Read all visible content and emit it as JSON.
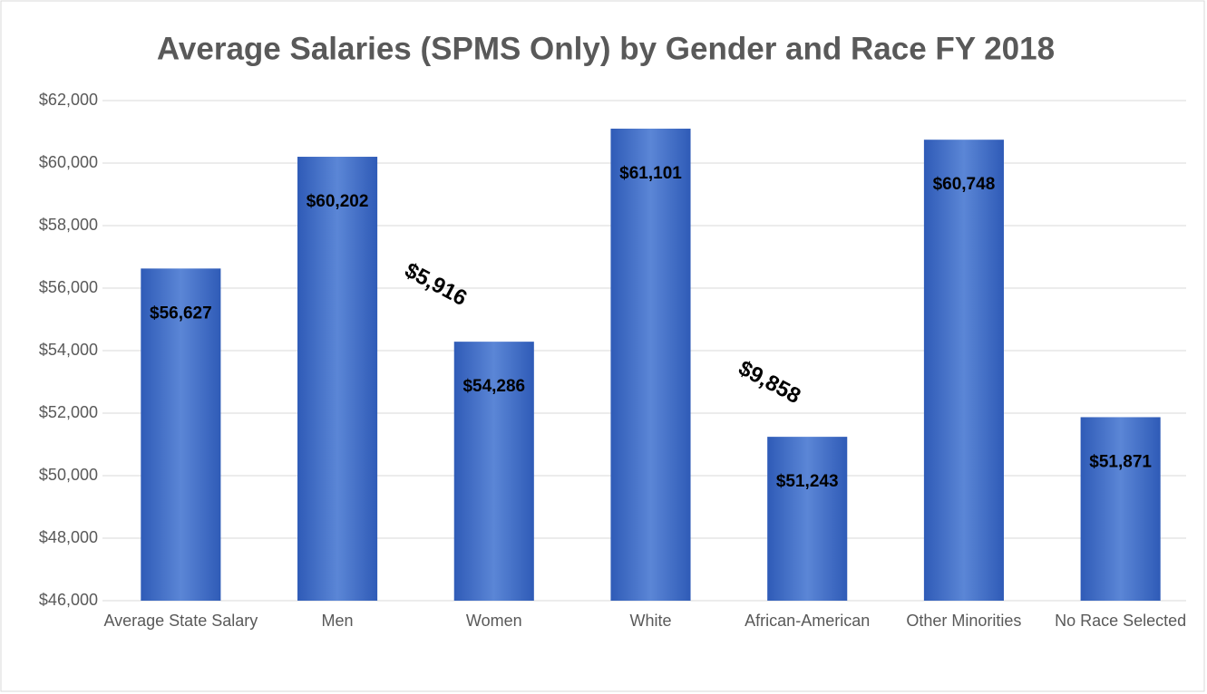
{
  "chart_data": {
    "type": "bar",
    "title": "Average Salaries (SPMS Only) by Gender and Race FY 2018",
    "categories": [
      "Average State Salary",
      "Men",
      "Women",
      "White",
      "African-American",
      "Other Minorities",
      "No Race Selected"
    ],
    "values": [
      56627,
      60202,
      54286,
      61101,
      51243,
      60748,
      51871
    ],
    "value_labels": [
      "$56,627",
      "$60,202",
      "$54,286",
      "$61,101",
      "$51,243",
      "$60,748",
      "$51,871"
    ],
    "color": "#4472c4",
    "ylim": [
      46000,
      62000
    ],
    "yticks": [
      {
        "value": 46000,
        "label": "$46,000"
      },
      {
        "value": 48000,
        "label": "$48,000"
      },
      {
        "value": 50000,
        "label": "$50,000"
      },
      {
        "value": 52000,
        "label": "$52,000"
      },
      {
        "value": 54000,
        "label": "$54,000"
      },
      {
        "value": 56000,
        "label": "$56,000"
      },
      {
        "value": 58000,
        "label": "$58,000"
      },
      {
        "value": 60000,
        "label": "$60,000"
      },
      {
        "value": 62000,
        "label": "$62,000"
      }
    ],
    "grid": true,
    "annotations": [
      "$5,916",
      "$9,858"
    ]
  }
}
